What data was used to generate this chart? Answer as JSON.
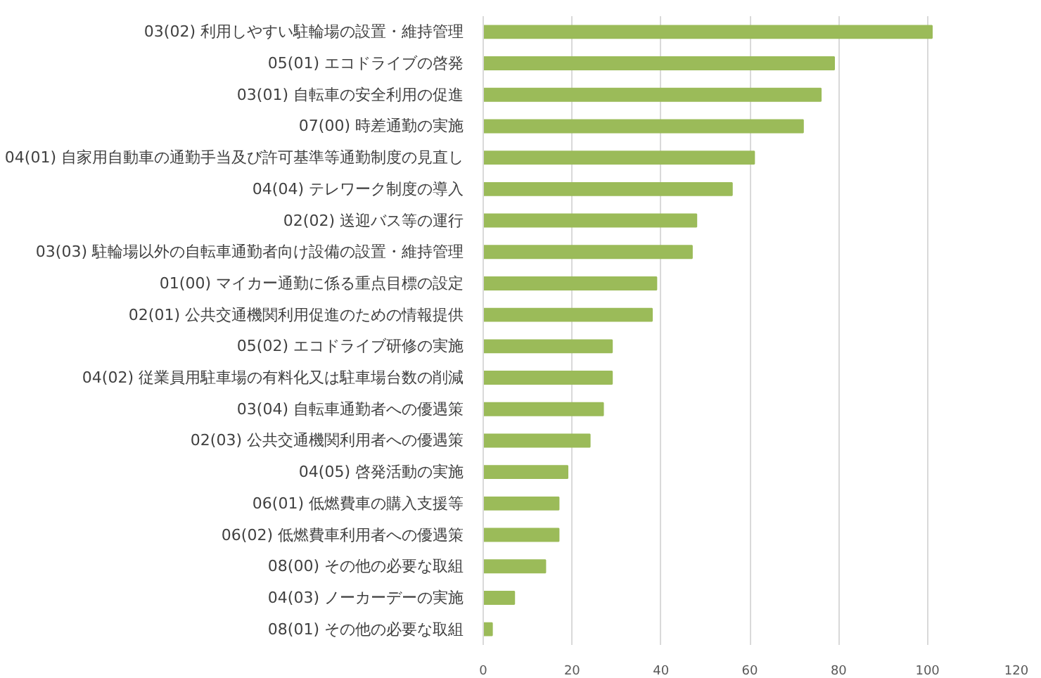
{
  "chart_data": {
    "type": "bar",
    "orientation": "horizontal",
    "categories": [
      "03(02) 利用しやすい駐輪場の設置・維持管理",
      "05(01) エコドライブの啓発",
      "03(01) 自転車の安全利用の促進",
      "07(00) 時差通勤の実施",
      "04(01) 自家用自動車の通勤手当及び許可基準等通勤制度の見直し",
      "04(04) テレワーク制度の導入",
      "02(02) 送迎バス等の運行",
      "03(03) 駐輪場以外の自転車通勤者向け設備の設置・維持管理",
      "01(00) マイカー通勤に係る重点目標の設定",
      "02(01) 公共交通機関利用促進のための情報提供",
      "05(02) エコドライブ研修の実施",
      "04(02) 従業員用駐車場の有料化又は駐車場台数の削減",
      "03(04) 自転車通勤者への優遇策",
      "02(03) 公共交通機関利用者への優遇策",
      "04(05) 啓発活動の実施",
      "06(01) 低燃費車の購入支援等",
      "06(02) 低燃費車利用者への優遇策",
      "08(00) その他の必要な取組",
      "04(03) ノーカーデーの実施",
      "08(01) その他の必要な取組"
    ],
    "values": [
      101,
      79,
      76,
      72,
      61,
      56,
      48,
      47,
      39,
      38,
      29,
      29,
      27,
      24,
      19,
      17,
      17,
      14,
      7,
      2
    ],
    "color": "#9bbb59",
    "xlim": [
      0,
      120
    ],
    "xticks": [
      0,
      20,
      40,
      60,
      80,
      100,
      120
    ],
    "grid": "x"
  }
}
